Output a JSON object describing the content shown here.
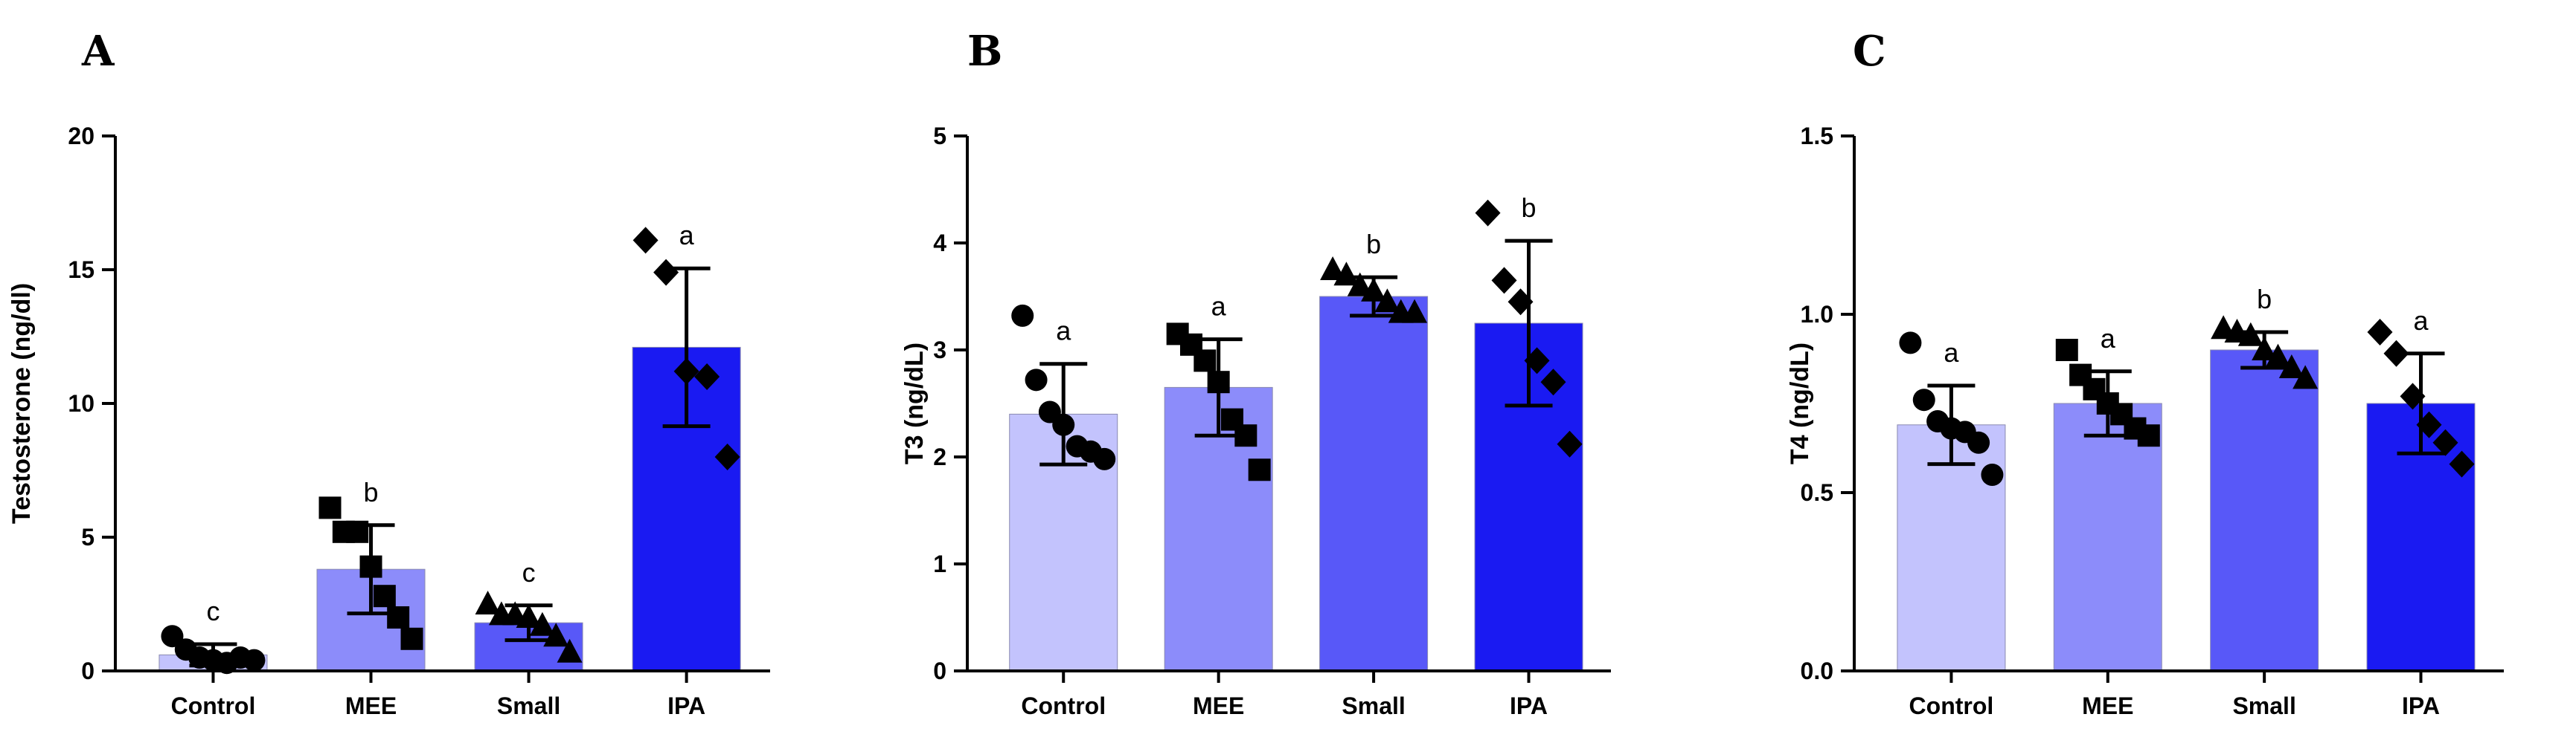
{
  "chart_data": [
    {
      "type": "bar",
      "panel": "A",
      "ylabel": "Testosterone (ng/dl)",
      "ylim": [
        0,
        20
      ],
      "yticks": [
        0,
        5,
        10,
        15,
        20
      ],
      "ytick_labels": [
        "0",
        "5",
        "10",
        "15",
        "20"
      ],
      "categories": [
        "Control",
        "MEE",
        "Small",
        "IPA"
      ],
      "values": [
        0.6,
        3.8,
        1.8,
        12.1
      ],
      "error": [
        0.4,
        1.65,
        0.65,
        2.95
      ],
      "significance": [
        "c",
        "b",
        "c",
        "a"
      ],
      "bar_colors": [
        "#c3c3fd",
        "#8c8cfa",
        "#5858f8",
        "#1a1af2"
      ],
      "marker": [
        "circle",
        "square",
        "triangle",
        "diamond"
      ],
      "points": [
        [
          1.3,
          0.8,
          0.5,
          0.4,
          0.3,
          0.5,
          0.4
        ],
        [
          6.1,
          5.2,
          5.2,
          3.9,
          2.8,
          2.0,
          1.2
        ],
        [
          2.5,
          2.1,
          2.1,
          2.0,
          1.7,
          1.3,
          0.7
        ],
        [
          16.1,
          14.9,
          11.2,
          11.0,
          8.0
        ]
      ]
    },
    {
      "type": "bar",
      "panel": "B",
      "ylabel": "T3 (ng/dL)",
      "ylim": [
        0,
        5
      ],
      "yticks": [
        0,
        1,
        2,
        3,
        4,
        5
      ],
      "ytick_labels": [
        "0",
        "1",
        "2",
        "3",
        "4",
        "5"
      ],
      "categories": [
        "Control",
        "MEE",
        "Small",
        "IPA"
      ],
      "values": [
        2.4,
        2.65,
        3.5,
        3.25
      ],
      "error": [
        0.47,
        0.45,
        0.18,
        0.77
      ],
      "significance": [
        "a",
        "a",
        "b",
        "b"
      ],
      "bar_colors": [
        "#c3c3fd",
        "#8c8cfa",
        "#5858f8",
        "#1a1af2"
      ],
      "marker": [
        "circle",
        "square",
        "triangle",
        "diamond"
      ],
      "points": [
        [
          3.32,
          2.72,
          2.42,
          2.3,
          2.1,
          2.05,
          1.98
        ],
        [
          3.15,
          3.05,
          2.9,
          2.7,
          2.35,
          2.2,
          1.88
        ],
        [
          3.75,
          3.7,
          3.6,
          3.55,
          3.45,
          3.35,
          3.35
        ],
        [
          4.28,
          3.65,
          3.45,
          2.9,
          2.7,
          2.12
        ]
      ]
    },
    {
      "type": "bar",
      "panel": "C",
      "ylabel": "T4 (ng/dL)",
      "ylim": [
        0,
        1.5
      ],
      "yticks": [
        0,
        0.5,
        1.0,
        1.5
      ],
      "ytick_labels": [
        "0.0",
        "0.5",
        "1.0",
        "1.5"
      ],
      "categories": [
        "Control",
        "MEE",
        "Small",
        "IPA"
      ],
      "values": [
        0.69,
        0.75,
        0.9,
        0.75
      ],
      "error": [
        0.11,
        0.09,
        0.05,
        0.14
      ],
      "significance": [
        "a",
        "a",
        "b",
        "a"
      ],
      "bar_colors": [
        "#c3c3fd",
        "#8c8cfa",
        "#5858f8",
        "#1a1af2"
      ],
      "marker": [
        "circle",
        "square",
        "triangle",
        "diamond"
      ],
      "points": [
        [
          0.92,
          0.76,
          0.7,
          0.68,
          0.67,
          0.64,
          0.55
        ],
        [
          0.9,
          0.83,
          0.79,
          0.75,
          0.72,
          0.68,
          0.66
        ],
        [
          0.96,
          0.95,
          0.94,
          0.9,
          0.88,
          0.85,
          0.82
        ],
        [
          0.95,
          0.89,
          0.77,
          0.69,
          0.64,
          0.58
        ]
      ]
    }
  ]
}
